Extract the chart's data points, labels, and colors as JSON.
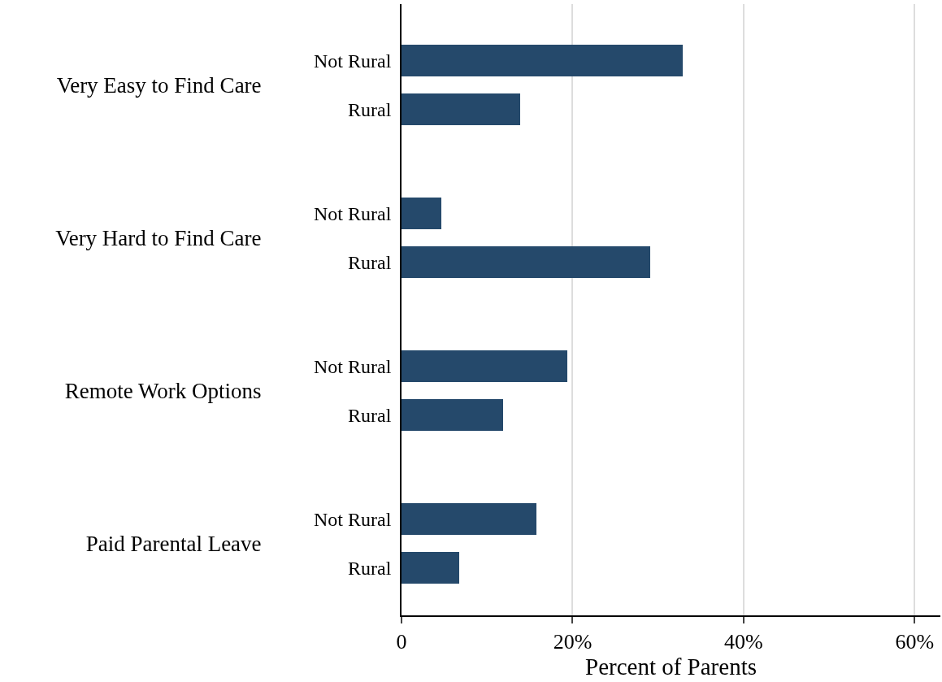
{
  "chart_data": {
    "type": "bar",
    "orientation": "horizontal",
    "categories": [
      "Very Easy to Find Care",
      "Very Hard to Find Care",
      "Remote Work Options",
      "Paid Parental Leave"
    ],
    "series": [
      {
        "name": "Not Rural",
        "color": "#25496b",
        "values": [
          32.9,
          4.7,
          19.4,
          15.8
        ]
      },
      {
        "name": "Rural",
        "color": "#25496b",
        "values": [
          13.9,
          29.1,
          11.9,
          6.7
        ]
      }
    ],
    "xlabel": "Percent of Parents",
    "xlim": [
      0,
      63
    ],
    "xticks": [
      0,
      {
        "value": 20,
        "label": "20%"
      },
      {
        "value": 40,
        "label": "40%"
      },
      {
        "value": 60,
        "label": "60%"
      }
    ],
    "grid": "x",
    "legend": false
  }
}
